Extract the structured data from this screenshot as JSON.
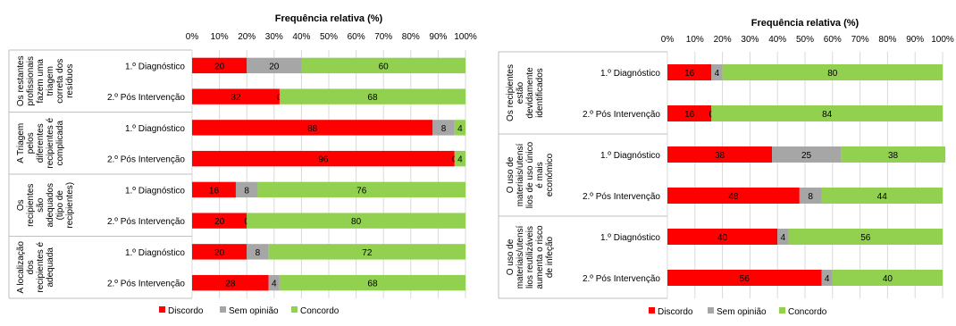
{
  "legend": {
    "discordo": "Discordo",
    "sem_opiniao": "Sem opinião",
    "concordo": "Concordo"
  },
  "colors": {
    "discordo": "#ff0000",
    "sem_opiniao": "#a6a6a6",
    "concordo": "#92d050",
    "grid": "#d9d9d9"
  },
  "chart_data": [
    {
      "type": "bar",
      "orientation": "horizontal",
      "stacked": true,
      "title": "Frequência relativa (%)",
      "xlim": [
        0,
        100
      ],
      "x_ticks": [
        "0%",
        "10%",
        "20%",
        "30%",
        "40%",
        "50%",
        "60%",
        "70%",
        "80%",
        "90%",
        "100%"
      ],
      "legend_position": "bottom",
      "groups": [
        {
          "label": "Os restantes profissionais fazem uma triagem correta dos resíduos",
          "label_lines": [
            "Os restantes",
            "profissionais",
            "fazem uma",
            "triagem",
            "correta dos",
            "resíduos"
          ],
          "rows": [
            {
              "label": "1.º Diagnóstico",
              "discordo": 20,
              "sem_opiniao": 20,
              "concordo": 60
            },
            {
              "label": "2.º Pós Intervenção",
              "discordo": 32,
              "sem_opiniao": 0,
              "concordo": 68
            }
          ]
        },
        {
          "label": "A Triagem pelos diferentes recipientes é complicada",
          "label_lines": [
            "A Triagem",
            "pelos",
            "diferentes",
            "recipientes é",
            "complicada"
          ],
          "rows": [
            {
              "label": "1.º Diagnóstico",
              "discordo": 88,
              "sem_opiniao": 8,
              "concordo": 4
            },
            {
              "label": "2.º Pós Intervenção",
              "discordo": 96,
              "sem_opiniao": 0,
              "concordo": 4
            }
          ]
        },
        {
          "label": "Os recipientes são adequados (tipo de recipientes)",
          "label_lines": [
            "Os",
            "recipientes",
            "são",
            "adequados",
            "(tipo de",
            "recipientes)"
          ],
          "rows": [
            {
              "label": "1.º Diagnóstico",
              "discordo": 16,
              "sem_opiniao": 8,
              "concordo": 76
            },
            {
              "label": "2.º Pós Intervenção",
              "discordo": 20,
              "sem_opiniao": 0,
              "concordo": 80
            }
          ]
        },
        {
          "label": "A localização dos recipientes é adequada",
          "label_lines": [
            "A localização",
            "dos",
            "recipientes é",
            "adequada"
          ],
          "rows": [
            {
              "label": "1.º Diagnóstico",
              "discordo": 20,
              "sem_opiniao": 8,
              "concordo": 72
            },
            {
              "label": "2.º Pós Intervenção",
              "discordo": 28,
              "sem_opiniao": 4,
              "concordo": 68
            }
          ]
        }
      ]
    },
    {
      "type": "bar",
      "orientation": "horizontal",
      "stacked": true,
      "title": "Frequência relativa (%)",
      "xlim": [
        0,
        100
      ],
      "x_ticks": [
        "0%",
        "10%",
        "20%",
        "30%",
        "40%",
        "50%",
        "60%",
        "70%",
        "80%",
        "90%",
        "100%"
      ],
      "legend_position": "bottom",
      "groups": [
        {
          "label": "Os recipientes estão devidamente identificados",
          "label_lines": [
            "Os recipientes",
            "estão",
            "devidamente",
            "identificados"
          ],
          "rows": [
            {
              "label": "1.º Diagnóstico",
              "discordo": 16,
              "sem_opiniao": 4,
              "concordo": 80
            },
            {
              "label": "2.º Pós Intervenção",
              "discordo": 16,
              "sem_opiniao": 0,
              "concordo": 84
            }
          ]
        },
        {
          "label": "O uso de materiais/utensílios de uso único é mais económico",
          "label_lines": [
            "O uso de",
            "materiais/utensí",
            "lios de uso único",
            "é mais",
            "económico"
          ],
          "rows": [
            {
              "label": "1.º Diagnóstico",
              "discordo": 38,
              "sem_opiniao": 25,
              "concordo": 38
            },
            {
              "label": "2.º Pós Intervenção",
              "discordo": 48,
              "sem_opiniao": 8,
              "concordo": 44
            }
          ]
        },
        {
          "label": "O uso de materiais/utensílios reutilizáveis aumenta o risco de infeção",
          "label_lines": [
            "O uso de",
            "materiais/utensí",
            "lios reutilizáveis",
            "aumenta o risco",
            "de infeção"
          ],
          "rows": [
            {
              "label": "1.º Diagnóstico",
              "discordo": 40,
              "sem_opiniao": 4,
              "concordo": 56
            },
            {
              "label": "2.º Pós Intervenção",
              "discordo": 56,
              "sem_opiniao": 4,
              "concordo": 40
            }
          ]
        }
      ]
    }
  ]
}
